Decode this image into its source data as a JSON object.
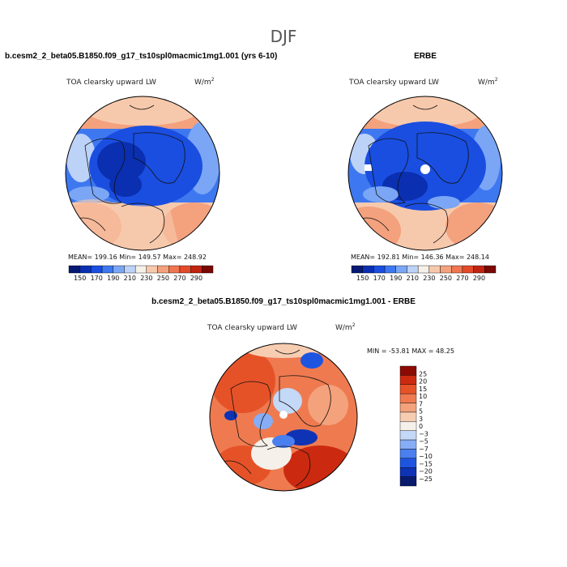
{
  "page": {
    "title": "DJF"
  },
  "colors": {
    "sequential": [
      "#061a73",
      "#0a2fb0",
      "#1a4ee0",
      "#3e78f0",
      "#7aa6f5",
      "#bcd2f7",
      "#f5f0e8",
      "#f7c9ac",
      "#f4a17e",
      "#ef7650",
      "#e34a2a",
      "#c02410",
      "#7a0804"
    ],
    "diverging": [
      "#0a1a6e",
      "#0e33b5",
      "#1e55e0",
      "#4a7ff0",
      "#86adf5",
      "#c4d8f8",
      "#f6f0ea",
      "#f7cdb2",
      "#f3a27c",
      "#ef7a50",
      "#e65228",
      "#cc2a10",
      "#8c0a04"
    ],
    "land_outline": "#111111"
  },
  "panels": [
    {
      "id": "model",
      "header": "b.cesm2_2_beta05.B1850.f09_g17_ts10spl0macmic1mg1.001 (yrs 6-10)",
      "variable": "TOA clearsky upward LW",
      "units": "W/m",
      "units_exp": "2",
      "stats": "MEAN= 199.16   Min= 149.57   Max= 248.92"
    },
    {
      "id": "obs",
      "header": "ERBE",
      "variable": "TOA clearsky upward LW",
      "units": "W/m",
      "units_exp": "2",
      "stats": "MEAN= 192.81   Min= 146.36   Max= 248.14"
    },
    {
      "id": "diff",
      "header": "b.cesm2_2_beta05.B1850.f09_g17_ts10spl0macmic1mg1.001 - ERBE",
      "variable": "TOA clearsky upward LW",
      "units": "W/m",
      "units_exp": "2",
      "stats": "MIN = -53.81  MAX =  48.25"
    }
  ],
  "chart_data": [
    {
      "type": "heatmap",
      "title": "TOA clearsky upward LW",
      "projection": "polar-stereographic (north)",
      "units": "W/m^2",
      "levels": [
        150,
        170,
        190,
        210,
        230,
        250,
        270,
        290
      ],
      "colorbar_labels": [
        "150",
        "170",
        "190",
        "210",
        "230",
        "250",
        "270",
        "290"
      ],
      "mean": 199.16,
      "min": 149.57,
      "max": 248.92
    },
    {
      "type": "heatmap",
      "title": "TOA clearsky upward LW",
      "projection": "polar-stereographic (north)",
      "units": "W/m^2",
      "levels": [
        150,
        170,
        190,
        210,
        230,
        250,
        270,
        290
      ],
      "colorbar_labels": [
        "150",
        "170",
        "190",
        "210",
        "230",
        "250",
        "270",
        "290"
      ],
      "mean": 192.81,
      "min": 146.36,
      "max": 248.14
    },
    {
      "type": "heatmap",
      "title": "TOA clearsky upward LW",
      "projection": "polar-stereographic (north)",
      "units": "W/m^2",
      "levels": [
        -25,
        -20,
        -15,
        -10,
        -7,
        -5,
        -3,
        0,
        3,
        5,
        7,
        10,
        15,
        20,
        25
      ],
      "colorbar_labels": [
        "25",
        "20",
        "15",
        "10",
        "7",
        "5",
        "3",
        "0",
        "−3",
        "−5",
        "−7",
        "−10",
        "−15",
        "−20",
        "−25"
      ],
      "min": -53.81,
      "max": 48.25
    }
  ]
}
